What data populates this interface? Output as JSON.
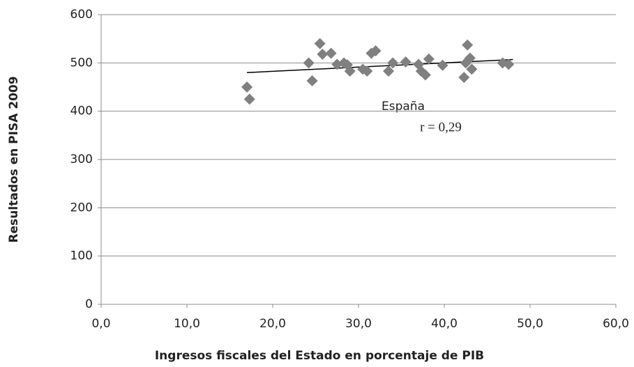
{
  "chart_data": {
    "type": "scatter",
    "xlabel": "Ingresos fiscales del Estado en porcentaje de PIB",
    "ylabel": "Resultados en PISA 2009",
    "annotations": [
      "España",
      "r = 0,29"
    ],
    "x": [
      17.0,
      17.3,
      24.2,
      24.6,
      25.5,
      25.8,
      26.8,
      27.5,
      28.3,
      28.7,
      29.0,
      30.5,
      31.0,
      31.5,
      32.0,
      33.5,
      34.0,
      35.5,
      37.0,
      37.3,
      37.8,
      38.2,
      39.8,
      42.3,
      42.5,
      42.7,
      43.0,
      43.2,
      46.8,
      47.5
    ],
    "values": [
      450,
      425,
      500,
      463,
      540,
      518,
      520,
      497,
      500,
      496,
      483,
      487,
      483,
      520,
      525,
      483,
      500,
      502,
      497,
      483,
      475,
      508,
      495,
      470,
      500,
      537,
      510,
      487,
      500,
      497
    ],
    "color": "#808080",
    "trendline": {
      "x": [
        17,
        48
      ],
      "values": [
        480,
        507
      ],
      "color": "#000000"
    },
    "xlim": [
      0,
      60
    ],
    "xticks": [
      {
        "value": 0,
        "label": "0,0"
      },
      {
        "value": 10,
        "label": "10,0"
      },
      {
        "value": 20,
        "label": "20,0"
      },
      {
        "value": 30,
        "label": "30,0"
      },
      {
        "value": 40,
        "label": "40,0"
      },
      {
        "value": 50,
        "label": "50,0"
      },
      {
        "value": 60,
        "label": "60,0"
      }
    ],
    "ylim": [
      0,
      600
    ],
    "yticks": [
      0,
      100,
      200,
      300,
      400,
      500,
      600
    ],
    "grid": true
  }
}
